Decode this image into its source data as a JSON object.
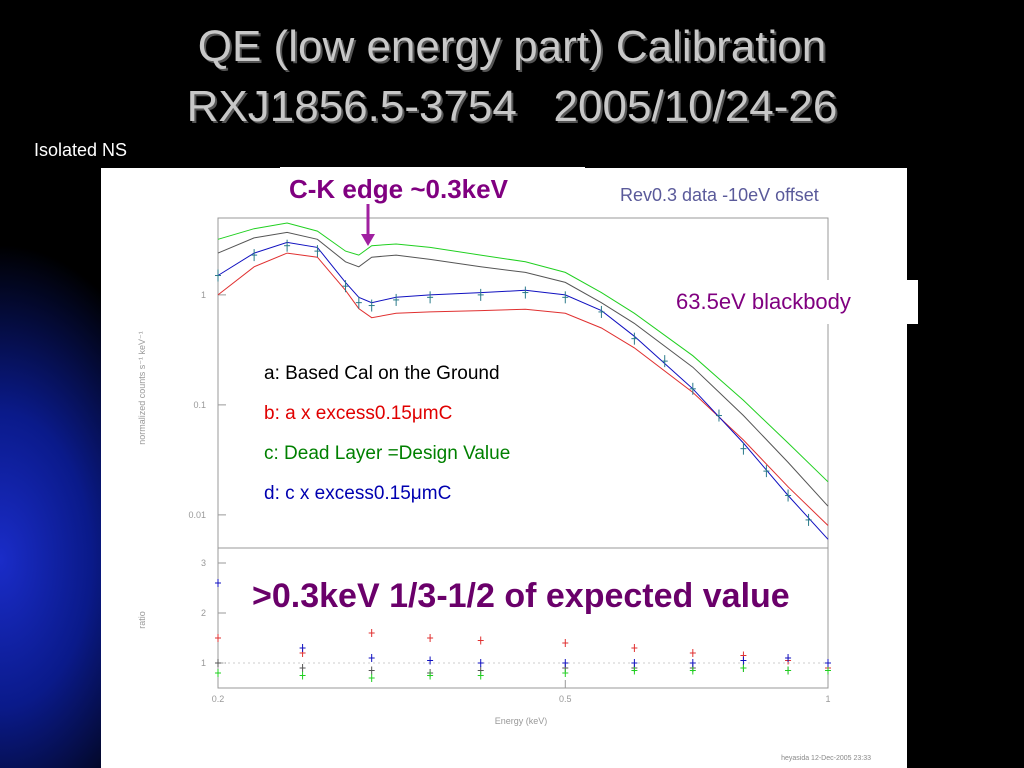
{
  "title": {
    "line1": "QE (low energy part) Calibration",
    "line2": "RXJ1856.5-3754   2005/10/24-26"
  },
  "side_note": "Isolated NS",
  "annotations": {
    "edge": "C-K edge ~0.3keV",
    "rev": "Rev0.3 data -10eV offset",
    "blackbody": "63.5eV blackbody",
    "conclusion": ">0.3keV 1/3-1/2 of expected value",
    "legend": [
      {
        "text": "a: Based Cal on the Ground",
        "color": "#000000"
      },
      {
        "text": "b: a x excess0.15μmC",
        "color": "#e00000"
      },
      {
        "text": "c: Dead Layer =Design Value",
        "color": "#008000"
      },
      {
        "text": "d: c x excess0.15μmC",
        "color": "#0000b0"
      }
    ]
  },
  "chart_data": {
    "type": "line",
    "xlabel": "Energy (keV)",
    "ylabel_top": "normalized counts s⁻¹ keV⁻¹",
    "ylabel_bottom": "ratio",
    "x_ticks": [
      "0.2",
      "0.5",
      "1"
    ],
    "y_ticks_top": [
      "1",
      "0.1",
      "0.01"
    ],
    "y_ticks_bottom": [
      "3",
      "2",
      "1"
    ],
    "xlim": [
      0.2,
      1.0
    ],
    "ylim_top": [
      0.005,
      5
    ],
    "ylim_bottom": [
      0.5,
      3.3
    ],
    "x_scale": "log",
    "y_scale_top": "log",
    "footer": "heyasida 12-Dec-2005 23:33",
    "series": [
      {
        "name": "a",
        "color": "#555555",
        "x": [
          0.2,
          0.22,
          0.24,
          0.26,
          0.28,
          0.29,
          0.3,
          0.32,
          0.35,
          0.4,
          0.45,
          0.5,
          0.55,
          0.6,
          0.7,
          0.8,
          0.9,
          1.0
        ],
        "y": [
          2.4,
          3.3,
          3.7,
          3.2,
          2.0,
          1.8,
          2.2,
          2.3,
          2.1,
          1.8,
          1.6,
          1.3,
          0.85,
          0.55,
          0.22,
          0.08,
          0.03,
          0.012
        ]
      },
      {
        "name": "b",
        "color": "#e03030",
        "x": [
          0.2,
          0.22,
          0.24,
          0.26,
          0.28,
          0.29,
          0.3,
          0.32,
          0.35,
          0.4,
          0.45,
          0.5,
          0.55,
          0.6,
          0.7,
          0.8,
          0.9,
          1.0
        ],
        "y": [
          1.0,
          1.8,
          2.4,
          2.2,
          1.1,
          0.75,
          0.62,
          0.68,
          0.7,
          0.72,
          0.74,
          0.68,
          0.5,
          0.33,
          0.13,
          0.048,
          0.018,
          0.008
        ]
      },
      {
        "name": "c",
        "color": "#20d020",
        "x": [
          0.2,
          0.22,
          0.24,
          0.26,
          0.28,
          0.29,
          0.3,
          0.32,
          0.35,
          0.4,
          0.45,
          0.5,
          0.55,
          0.6,
          0.7,
          0.8,
          0.9,
          1.0
        ],
        "y": [
          3.2,
          4.0,
          4.5,
          3.8,
          2.5,
          2.3,
          2.8,
          2.9,
          2.7,
          2.3,
          2.0,
          1.6,
          1.05,
          0.68,
          0.28,
          0.11,
          0.045,
          0.02
        ]
      },
      {
        "name": "d",
        "color": "#1010c0",
        "x": [
          0.2,
          0.22,
          0.24,
          0.26,
          0.28,
          0.29,
          0.3,
          0.32,
          0.35,
          0.4,
          0.45,
          0.5,
          0.55,
          0.6,
          0.7,
          0.8,
          0.9,
          1.0
        ],
        "y": [
          1.5,
          2.4,
          3.0,
          2.7,
          1.3,
          0.95,
          0.85,
          0.95,
          1.0,
          1.05,
          1.1,
          1.0,
          0.72,
          0.42,
          0.14,
          0.045,
          0.015,
          0.006
        ]
      },
      {
        "name": "data",
        "color": "#2a7a8a",
        "x": [
          0.2,
          0.22,
          0.24,
          0.26,
          0.28,
          0.29,
          0.3,
          0.32,
          0.35,
          0.4,
          0.45,
          0.5,
          0.55,
          0.6,
          0.65,
          0.7,
          0.75,
          0.8,
          0.85,
          0.9,
          0.95
        ],
        "y": [
          1.5,
          2.3,
          2.8,
          2.5,
          1.2,
          0.85,
          0.8,
          0.9,
          0.95,
          1.0,
          1.05,
          0.95,
          0.7,
          0.4,
          0.25,
          0.14,
          0.08,
          0.04,
          0.025,
          0.015,
          0.009
        ]
      }
    ],
    "ratio_series": [
      {
        "name": "a",
        "color": "#555555",
        "x": [
          0.2,
          0.25,
          0.3,
          0.35,
          0.4,
          0.5,
          0.6,
          0.7,
          0.8,
          0.9,
          1.0
        ],
        "y": [
          1.0,
          0.9,
          0.85,
          0.8,
          0.85,
          0.9,
          0.9,
          0.9,
          0.9,
          0.85,
          0.85
        ]
      },
      {
        "name": "b",
        "color": "#e03030",
        "x": [
          0.2,
          0.25,
          0.3,
          0.35,
          0.4,
          0.5,
          0.6,
          0.7,
          0.8,
          0.9,
          1.0
        ],
        "y": [
          1.5,
          1.2,
          1.6,
          1.5,
          1.45,
          1.4,
          1.3,
          1.2,
          1.15,
          1.05,
          0.9
        ]
      },
      {
        "name": "c",
        "color": "#20d020",
        "x": [
          0.2,
          0.25,
          0.3,
          0.35,
          0.4,
          0.5,
          0.6,
          0.7,
          0.8,
          0.9,
          1.0
        ],
        "y": [
          0.8,
          0.75,
          0.7,
          0.75,
          0.75,
          0.8,
          0.85,
          0.85,
          0.9,
          0.85,
          0.85
        ]
      },
      {
        "name": "d",
        "color": "#1010c0",
        "x": [
          0.2,
          0.25,
          0.3,
          0.35,
          0.4,
          0.5,
          0.6,
          0.7,
          0.8,
          0.9,
          1.0
        ],
        "y": [
          2.6,
          1.3,
          1.1,
          1.05,
          1.0,
          1.0,
          1.0,
          1.0,
          1.05,
          1.1,
          1.0
        ]
      }
    ]
  }
}
